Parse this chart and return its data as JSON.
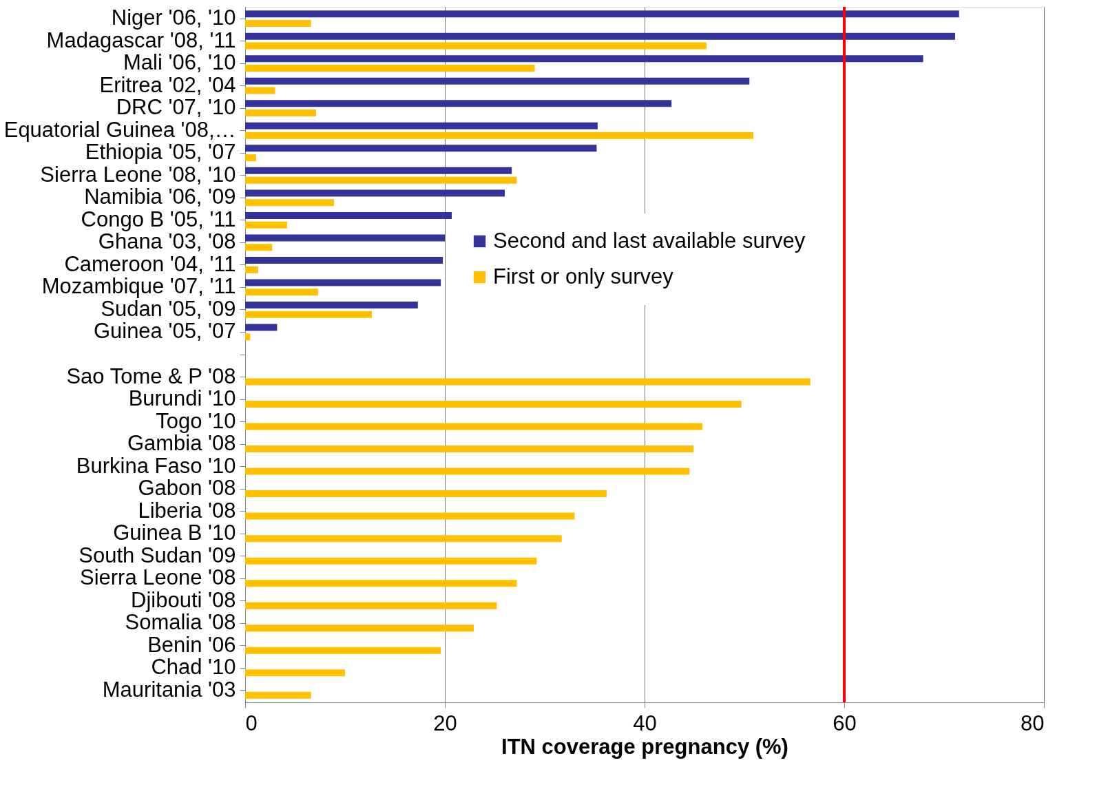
{
  "chart_data": {
    "type": "bar",
    "orientation": "horizontal",
    "xlabel": "ITN coverage pregnancy (%)",
    "categories": [
      "Niger '06, '10",
      "Madagascar '08, '11",
      "Mali '06, '10",
      "Eritrea '02, '04",
      "DRC '07, '10",
      "Equatorial Guinea '08,…",
      "Ethiopia '05, '07",
      "Sierra Leone '08, '10",
      "Namibia '06, '09",
      "Congo B '05, '11",
      "Ghana '03, '08",
      "Cameroon '04, '11",
      "Mozambique '07, '11",
      "Sudan '05, '09",
      "Guinea '05, '07",
      null,
      "Sao Tome & P '08",
      "Burundi '10",
      "Togo '10",
      "Gambia '08",
      "Burkina Faso '10",
      "Gabon '08",
      "Liberia '08",
      "Guinea B '10",
      "South Sudan '09",
      "Sierra Leone '08",
      "Djibouti '08",
      "Somalia '08",
      "Benin '06",
      "Chad '10",
      "Mauritania '03"
    ],
    "series": [
      {
        "name": "Second and last available survey",
        "color": "#333399",
        "values": [
          71.5,
          71.1,
          67.9,
          50.5,
          42.7,
          35.3,
          35.2,
          26.7,
          26.0,
          20.7,
          20.0,
          19.8,
          19.6,
          17.3,
          3.2,
          null,
          null,
          null,
          null,
          null,
          null,
          null,
          null,
          null,
          null,
          null,
          null,
          null,
          null,
          null,
          null
        ]
      },
      {
        "name": "First or only survey",
        "color": "#ffc000",
        "values": [
          6.6,
          46.2,
          29.0,
          3.0,
          7.1,
          50.9,
          1.1,
          27.2,
          8.9,
          4.2,
          2.7,
          1.3,
          7.3,
          12.7,
          0.5,
          null,
          56.6,
          49.7,
          45.8,
          44.9,
          44.5,
          36.2,
          33.0,
          31.7,
          29.2,
          27.2,
          25.2,
          22.9,
          19.6,
          10.0,
          6.6
        ]
      }
    ],
    "xlim": [
      0,
      80
    ],
    "xticks": [
      0,
      20,
      40,
      60,
      80
    ],
    "grid": "x",
    "legend": "right",
    "ref_lines": [
      {
        "axis": "x",
        "value": 60,
        "color": "#ff0000"
      }
    ]
  }
}
